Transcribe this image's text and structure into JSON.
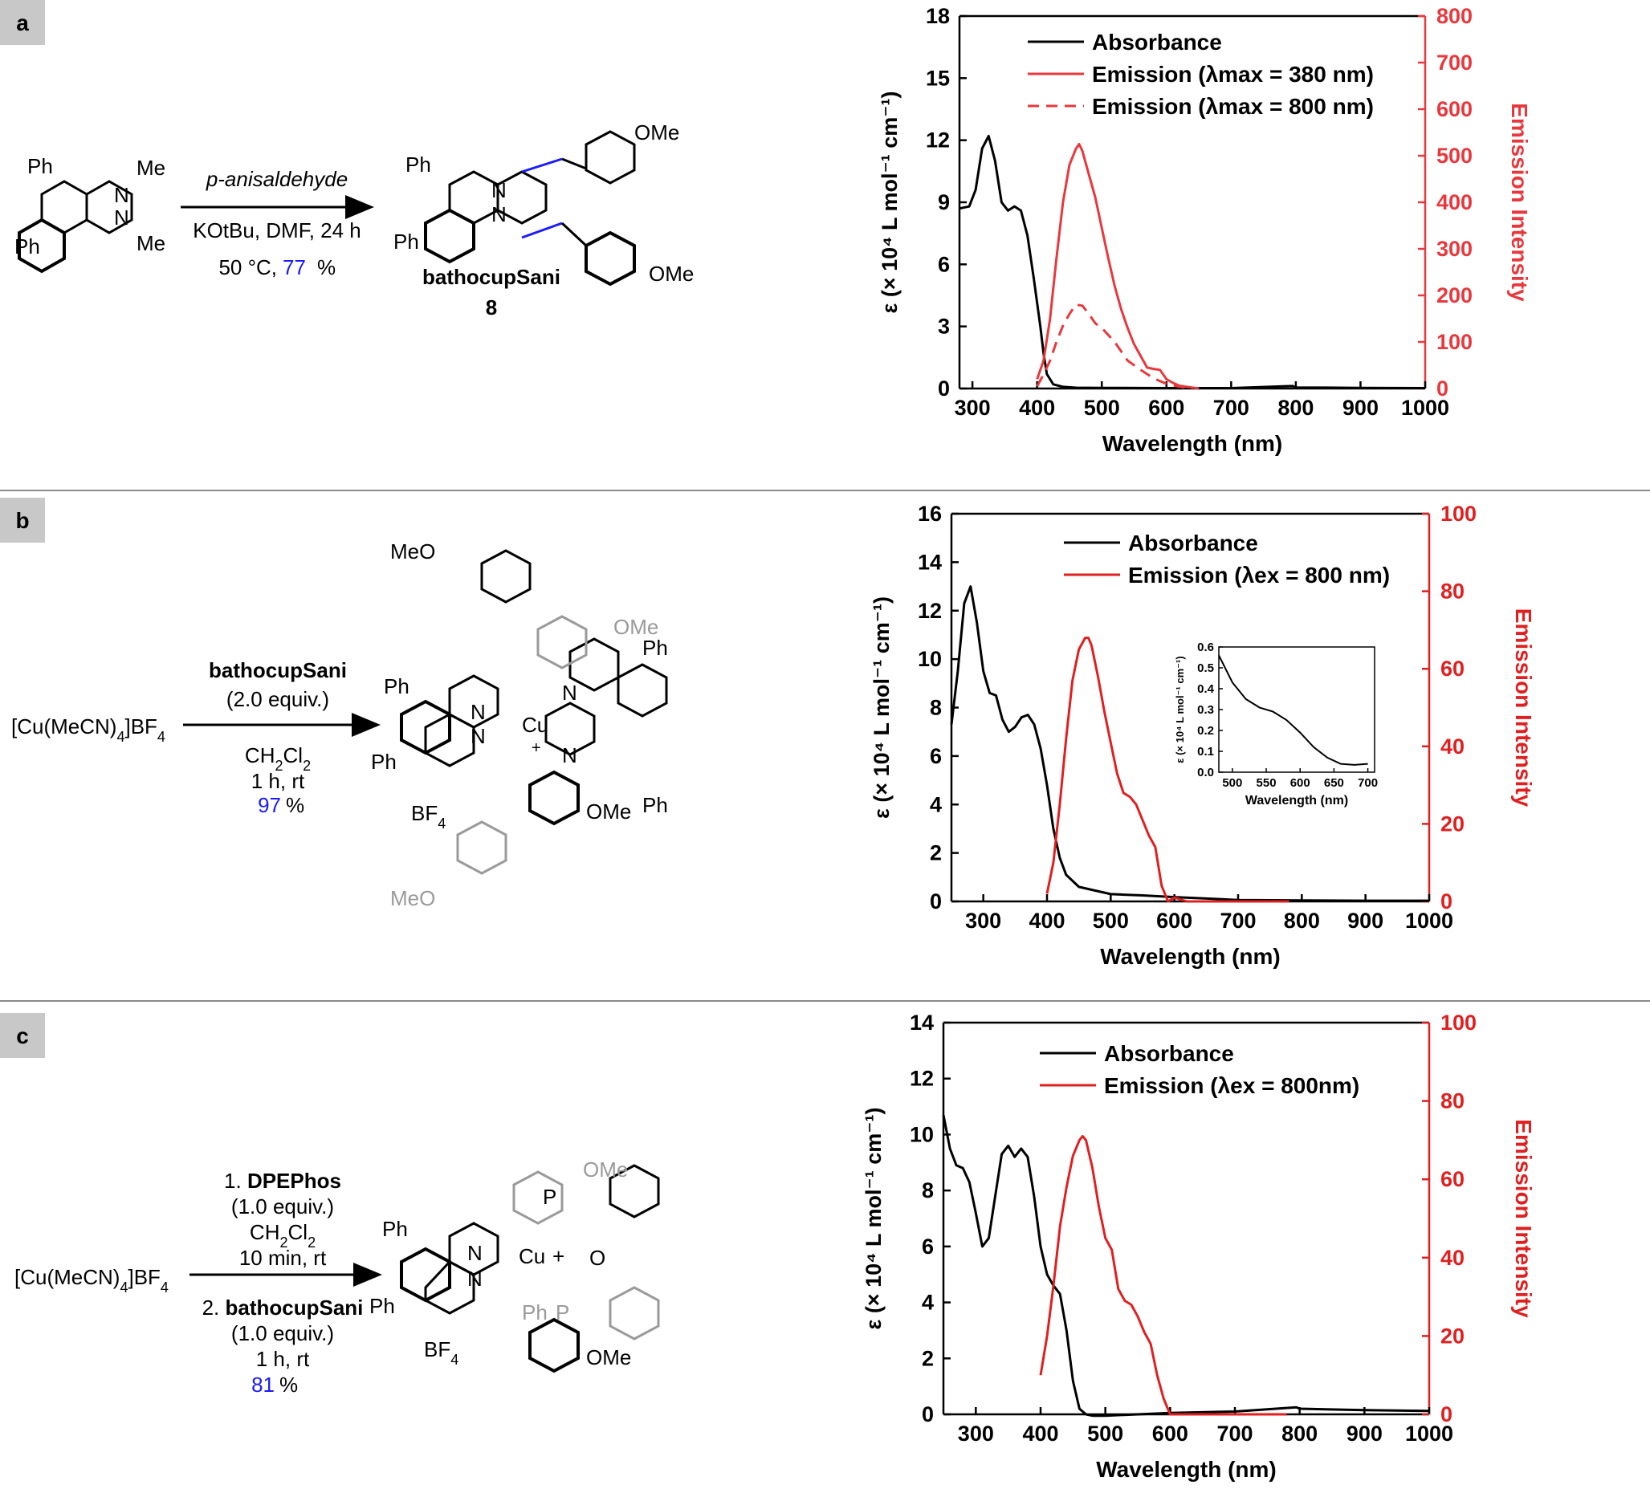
{
  "panels": [
    {
      "label": "a",
      "scheme": {
        "reagent": "p-anisaldehyde",
        "conditions": [
          "KOtBu, DMF, 24 h",
          "50 °C, "
        ],
        "yield": "77",
        "yield_unit": "%",
        "product_name": "bathocupSani",
        "product_number": "8",
        "groups": [
          "Ph",
          "Me",
          "N",
          "N",
          "Ph",
          "Me",
          "Ph",
          "N",
          "N",
          "Ph",
          "OMe",
          "OMe"
        ]
      }
    },
    {
      "label": "b",
      "scheme": {
        "start": "[Cu(MeCN)",
        "start_sub": "4",
        "start_tail": "]BF",
        "start_sub2": "4",
        "reagent": "bathocupSani",
        "reagent_equiv": "(2.0 equiv.)",
        "solvent": "CH",
        "solvent_sub1": "2",
        "solvent_mid": "Cl",
        "solvent_sub2": "2",
        "conditions": "1 h, rt",
        "yield": "97",
        "yield_unit": "%",
        "counterion": "BF",
        "counterion_sub": "4",
        "groups": [
          "MeO",
          "OMe",
          "Ph",
          "Ph",
          "N",
          "N",
          "Cu",
          "+",
          "N",
          "N",
          "Ph",
          "OMe",
          "Ph",
          "MeO"
        ]
      }
    },
    {
      "label": "c",
      "scheme": {
        "start": "[Cu(MeCN)",
        "start_sub": "4",
        "start_tail": "]BF",
        "start_sub2": "4",
        "step1": "1. ",
        "step1_reagent": "DPEPhos",
        "step1_equiv": "(1.0 equiv.)",
        "step1_solvent": "CH",
        "step1_solvent_sub": "2",
        "step1_solvent_mid": "Cl",
        "step1_solvent_sub2": "2",
        "step1_time": "10 min, rt",
        "step2": "2. ",
        "step2_reagent": "bathocupSani",
        "step2_equiv": "(1.0 equiv.)",
        "step2_time": "1 h, rt",
        "yield": "81",
        "yield_unit": "%",
        "counterion": "BF",
        "counterion_sub": "4",
        "groups": [
          "OMe",
          "Ph",
          "P",
          "Ph",
          "N",
          "Cu",
          "+",
          "N",
          "O",
          "Ph",
          "P",
          "OMe"
        ]
      }
    }
  ],
  "chart_data": [
    {
      "type": "line",
      "panel": "a",
      "xlabel": "Wavelength (nm)",
      "ylabel_left": "ε (× 10⁴ L mol⁻¹ cm⁻¹)",
      "ylabel_right": "Emission Intensity",
      "xlim": [
        280,
        1000
      ],
      "ylim_left": [
        0,
        18
      ],
      "ylim_right": [
        0,
        800
      ],
      "xticks": [
        300,
        400,
        500,
        600,
        700,
        800,
        900,
        1000
      ],
      "yticks_left": [
        0,
        3,
        6,
        9,
        12,
        15,
        18
      ],
      "yticks_right": [
        0,
        100,
        200,
        300,
        400,
        500,
        600,
        700,
        800
      ],
      "legend": [
        "Absorbance",
        "Emission (λmax = 380 nm)",
        "Emission (λmax = 800 nm)"
      ],
      "legend_position": "top-right",
      "colors": {
        "absorbance": "#000000",
        "emission": "#e8383d"
      },
      "series": [
        {
          "name": "Absorbance",
          "axis": "left",
          "style": "solid",
          "x": [
            280,
            295,
            305,
            315,
            325,
            335,
            345,
            355,
            365,
            375,
            385,
            395,
            405,
            410,
            415,
            425,
            440,
            460,
            500,
            600,
            700,
            795,
            800,
            900,
            1000
          ],
          "y": [
            8.7,
            8.8,
            9.6,
            11.6,
            12.2,
            11.0,
            9.0,
            8.6,
            8.8,
            8.6,
            7.4,
            5.3,
            3.0,
            1.7,
            0.7,
            0.2,
            0.08,
            0.04,
            0.03,
            0.02,
            0.02,
            0.12,
            0.05,
            0.03,
            0.02
          ]
        },
        {
          "name": "Emission (λmax = 380 nm)",
          "axis": "right",
          "style": "solid",
          "x": [
            400,
            410,
            420,
            430,
            440,
            450,
            460,
            465,
            470,
            480,
            490,
            500,
            510,
            520,
            530,
            540,
            550,
            560,
            570,
            580,
            590,
            600,
            610,
            620,
            630,
            640,
            650
          ],
          "y": [
            20,
            60,
            150,
            280,
            400,
            480,
            515,
            525,
            510,
            460,
            410,
            345,
            280,
            220,
            170,
            130,
            95,
            70,
            45,
            42,
            40,
            20,
            12,
            6,
            4,
            2,
            0
          ]
        },
        {
          "name": "Emission (λmax = 800 nm)",
          "axis": "right",
          "style": "dashed",
          "x": [
            400,
            410,
            420,
            430,
            440,
            450,
            460,
            470,
            480,
            490,
            500,
            520,
            540,
            560,
            580,
            600,
            620,
            640
          ],
          "y": [
            5,
            30,
            60,
            100,
            135,
            160,
            180,
            178,
            160,
            140,
            130,
            100,
            60,
            40,
            22,
            10,
            4,
            0
          ]
        }
      ]
    },
    {
      "type": "line",
      "panel": "b",
      "xlabel": "Wavelength (nm)",
      "ylabel_left": "ε (× 10⁴ L mol⁻¹ cm⁻¹)",
      "ylabel_right": "Emission Intensity",
      "xlim": [
        250,
        1000
      ],
      "ylim_left": [
        0,
        16
      ],
      "ylim_right": [
        0,
        100
      ],
      "xticks": [
        300,
        400,
        500,
        600,
        700,
        800,
        900,
        1000
      ],
      "yticks_left": [
        0,
        2,
        4,
        6,
        8,
        10,
        12,
        14,
        16
      ],
      "yticks_right": [
        0,
        20,
        40,
        60,
        80,
        100
      ],
      "legend": [
        "Absorbance",
        "Emission (λex = 800 nm)"
      ],
      "legend_position": "top-right",
      "colors": {
        "absorbance": "#000000",
        "emission": "#e02020"
      },
      "series": [
        {
          "name": "Absorbance",
          "axis": "left",
          "style": "solid",
          "x": [
            250,
            260,
            270,
            280,
            290,
            300,
            310,
            320,
            330,
            340,
            350,
            360,
            370,
            380,
            390,
            400,
            410,
            420,
            430,
            450,
            500,
            550,
            600,
            700,
            800,
            900,
            1000
          ],
          "y": [
            7.3,
            9.5,
            12.3,
            13.0,
            11.5,
            9.5,
            8.6,
            8.5,
            7.5,
            7.0,
            7.2,
            7.6,
            7.7,
            7.3,
            6.3,
            4.8,
            3.0,
            1.8,
            1.1,
            0.6,
            0.3,
            0.25,
            0.18,
            0.06,
            0.04,
            0.03,
            0.03
          ]
        },
        {
          "name": "Emission (λex = 800 nm)",
          "axis": "right",
          "style": "solid",
          "x": [
            400,
            410,
            420,
            430,
            440,
            450,
            460,
            465,
            470,
            480,
            490,
            500,
            510,
            520,
            530,
            540,
            550,
            560,
            570,
            580,
            590,
            600,
            620,
            700,
            780
          ],
          "y": [
            2,
            10,
            25,
            42,
            57,
            65,
            68,
            68,
            66,
            58,
            49,
            41,
            33,
            28,
            27,
            25,
            21,
            17,
            14,
            4,
            0,
            1,
            0,
            0,
            0
          ]
        }
      ],
      "inset": {
        "xlabel": "Wavelength (nm)",
        "ylabel": "ε (× 10⁴ L mol⁻¹ cm⁻¹)",
        "xlim": [
          480,
          710
        ],
        "ylim": [
          0,
          0.6
        ],
        "xticks": [
          500,
          550,
          600,
          650,
          700
        ],
        "yticks": [
          0.0,
          0.1,
          0.2,
          0.3,
          0.4,
          0.5,
          0.6
        ],
        "x": [
          480,
          500,
          520,
          540,
          560,
          580,
          600,
          620,
          640,
          660,
          680,
          700
        ],
        "y": [
          0.56,
          0.43,
          0.35,
          0.31,
          0.29,
          0.25,
          0.19,
          0.12,
          0.07,
          0.04,
          0.035,
          0.04
        ]
      }
    },
    {
      "type": "line",
      "panel": "c",
      "xlabel": "Wavelength (nm)",
      "ylabel_left": "ε (× 10⁴ L mol⁻¹ cm⁻¹)",
      "ylabel_right": "Emission Intensity",
      "xlim": [
        250,
        1000
      ],
      "ylim_left": [
        0,
        14
      ],
      "ylim_right": [
        0,
        100
      ],
      "xticks": [
        300,
        400,
        500,
        600,
        700,
        800,
        900,
        1000
      ],
      "yticks_left": [
        0,
        2,
        4,
        6,
        8,
        10,
        12,
        14
      ],
      "yticks_right": [
        0,
        20,
        40,
        60,
        80,
        100
      ],
      "legend": [
        "Absorbance",
        "Emission (λex = 800nm)"
      ],
      "legend_position": "top-right",
      "colors": {
        "absorbance": "#000000",
        "emission": "#e02020"
      },
      "series": [
        {
          "name": "Absorbance",
          "axis": "left",
          "style": "solid",
          "x": [
            250,
            260,
            270,
            280,
            290,
            300,
            310,
            320,
            330,
            340,
            350,
            360,
            370,
            380,
            390,
            400,
            410,
            420,
            430,
            440,
            450,
            460,
            470,
            480,
            500,
            600,
            700,
            795,
            800,
            900,
            1000
          ],
          "y": [
            10.7,
            9.5,
            8.9,
            8.8,
            8.3,
            7.2,
            6.0,
            6.3,
            7.8,
            9.3,
            9.6,
            9.2,
            9.5,
            9.2,
            7.8,
            6.0,
            5.0,
            4.6,
            4.3,
            3.0,
            1.2,
            0.2,
            0.0,
            -0.05,
            -0.05,
            0.05,
            0.1,
            0.25,
            0.2,
            0.15,
            0.12
          ]
        },
        {
          "name": "Emission (λex = 800nm)",
          "axis": "right",
          "style": "solid",
          "x": [
            400,
            410,
            420,
            430,
            440,
            450,
            460,
            465,
            470,
            480,
            490,
            500,
            510,
            520,
            530,
            540,
            550,
            560,
            570,
            580,
            590,
            600,
            700,
            780
          ],
          "y": [
            10,
            20,
            33,
            48,
            58,
            66,
            70,
            71,
            70,
            63,
            53,
            45,
            42,
            32,
            29,
            28,
            25,
            21,
            18,
            10,
            4,
            0,
            0,
            0
          ]
        }
      ]
    }
  ]
}
